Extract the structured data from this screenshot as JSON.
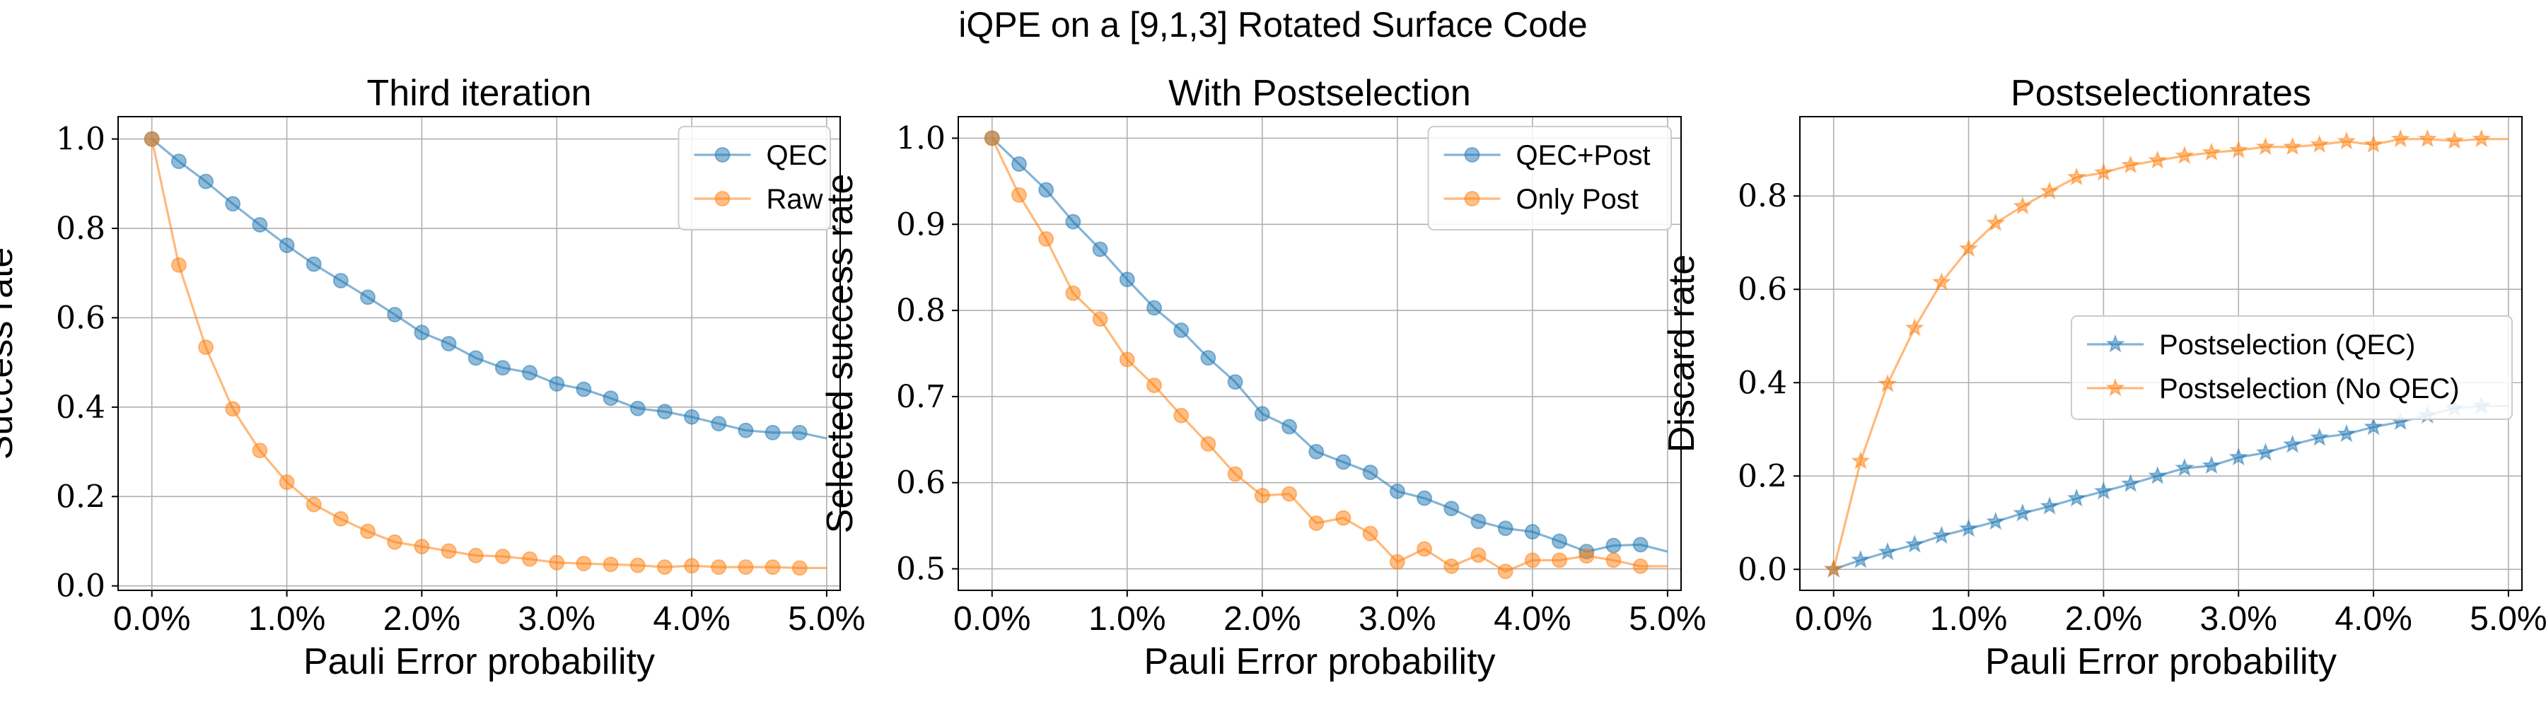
{
  "suptitle": "iQPE on a [9,1,3] Rotated Surface Code",
  "colors": {
    "blue": "#1f77b4",
    "orange": "#ff7f0e",
    "grid": "#b0b0b0",
    "axis": "#000000"
  },
  "chart_data": [
    {
      "type": "line",
      "title": "Third iteration",
      "xlabel": "Pauli Error probability",
      "ylabel": "Success rate",
      "xlim": [
        -0.25,
        5.1
      ],
      "ylim": [
        -0.01,
        1.05
      ],
      "xticks": [
        0,
        1,
        2,
        3,
        4,
        5
      ],
      "xtick_labels": [
        "0.0%",
        "1.0%",
        "2.0%",
        "3.0%",
        "4.0%",
        "5.0%"
      ],
      "yticks": [
        0.0,
        0.2,
        0.4,
        0.6,
        0.8,
        1.0
      ],
      "ytick_labels": [
        "0.0",
        "0.2",
        "0.4",
        "0.6",
        "0.8",
        "1.0"
      ],
      "grid": true,
      "legend_position": "top-right",
      "x": [
        0,
        0.2,
        0.4,
        0.6,
        0.8,
        1.0,
        1.2,
        1.4,
        1.6,
        1.8,
        2.0,
        2.2,
        2.4,
        2.6,
        2.8,
        3.0,
        3.2,
        3.4,
        3.6,
        3.8,
        4.0,
        4.2,
        4.4,
        4.6,
        4.8,
        5.0
      ],
      "series": [
        {
          "name": "QEC",
          "color": "#1f77b4",
          "marker": "circle",
          "marker_x": [
            0,
            0.2,
            0.4,
            0.6,
            0.8,
            1.0,
            1.2,
            1.4,
            1.6,
            1.8,
            2.0,
            2.2,
            2.4,
            2.6,
            2.8,
            3.0,
            3.2,
            3.4,
            3.6,
            3.8,
            4.0,
            4.2,
            4.4,
            4.6,
            4.8
          ],
          "values": [
            1.0,
            0.95,
            0.905,
            0.855,
            0.808,
            0.762,
            0.72,
            0.683,
            0.646,
            0.607,
            0.567,
            0.542,
            0.51,
            0.488,
            0.477,
            0.452,
            0.44,
            0.42,
            0.397,
            0.39,
            0.378,
            0.363,
            0.348,
            0.343,
            0.343,
            0.33
          ]
        },
        {
          "name": "Raw",
          "color": "#ff7f0e",
          "marker": "circle",
          "marker_x": [
            0,
            0.2,
            0.4,
            0.6,
            0.8,
            1.0,
            1.2,
            1.4,
            1.6,
            1.8,
            2.0,
            2.2,
            2.4,
            2.6,
            2.8,
            3.0,
            3.2,
            3.4,
            3.6,
            3.8,
            4.0,
            4.2,
            4.4,
            4.6,
            4.8
          ],
          "values": [
            1.0,
            0.718,
            0.534,
            0.396,
            0.303,
            0.232,
            0.182,
            0.15,
            0.122,
            0.098,
            0.088,
            0.078,
            0.068,
            0.066,
            0.06,
            0.052,
            0.05,
            0.048,
            0.046,
            0.042,
            0.045,
            0.042,
            0.042,
            0.042,
            0.04,
            0.04
          ]
        }
      ]
    },
    {
      "type": "line",
      "title": "With Postselection",
      "xlabel": "Pauli Error probability",
      "ylabel": "Selected success rate",
      "xlim": [
        -0.25,
        5.1
      ],
      "ylim": [
        0.475,
        1.025
      ],
      "xticks": [
        0,
        1,
        2,
        3,
        4,
        5
      ],
      "xtick_labels": [
        "0.0%",
        "1.0%",
        "2.0%",
        "3.0%",
        "4.0%",
        "5.0%"
      ],
      "yticks": [
        0.5,
        0.6,
        0.7,
        0.8,
        0.9,
        1.0
      ],
      "ytick_labels": [
        "0.5",
        "0.6",
        "0.7",
        "0.8",
        "0.9",
        "1.0"
      ],
      "grid": true,
      "legend_position": "top-right",
      "x": [
        0,
        0.2,
        0.4,
        0.6,
        0.8,
        1.0,
        1.2,
        1.4,
        1.6,
        1.8,
        2.0,
        2.2,
        2.4,
        2.6,
        2.8,
        3.0,
        3.2,
        3.4,
        3.6,
        3.8,
        4.0,
        4.2,
        4.4,
        4.6,
        4.8,
        5.0
      ],
      "series": [
        {
          "name": "QEC+Post",
          "color": "#1f77b4",
          "marker": "circle",
          "marker_x": [
            0,
            0.2,
            0.4,
            0.6,
            0.8,
            1.0,
            1.2,
            1.4,
            1.6,
            1.8,
            2.0,
            2.2,
            2.4,
            2.6,
            2.8,
            3.0,
            3.2,
            3.4,
            3.6,
            3.8,
            4.0,
            4.2,
            4.4,
            4.6,
            4.8
          ],
          "values": [
            1.0,
            0.97,
            0.94,
            0.903,
            0.871,
            0.836,
            0.803,
            0.777,
            0.745,
            0.717,
            0.68,
            0.665,
            0.636,
            0.624,
            0.612,
            0.59,
            0.582,
            0.57,
            0.555,
            0.547,
            0.543,
            0.532,
            0.52,
            0.527,
            0.528,
            0.52
          ]
        },
        {
          "name": "Only Post",
          "color": "#ff7f0e",
          "marker": "circle",
          "marker_x": [
            0,
            0.2,
            0.4,
            0.6,
            0.8,
            1.0,
            1.2,
            1.4,
            1.6,
            1.8,
            2.0,
            2.2,
            2.4,
            2.6,
            2.8,
            3.0,
            3.2,
            3.4,
            3.6,
            3.8,
            4.0,
            4.2,
            4.4,
            4.6,
            4.8
          ],
          "values": [
            1.0,
            0.934,
            0.883,
            0.82,
            0.79,
            0.743,
            0.713,
            0.678,
            0.645,
            0.61,
            0.585,
            0.587,
            0.553,
            0.559,
            0.541,
            0.508,
            0.523,
            0.503,
            0.516,
            0.497,
            0.51,
            0.51,
            0.515,
            0.51,
            0.503,
            0.503
          ]
        }
      ]
    },
    {
      "type": "line",
      "title": "Postselectionrates",
      "xlabel": "Pauli Error probability",
      "ylabel": "Discard rate",
      "xlim": [
        -0.25,
        5.1
      ],
      "ylim": [
        -0.045,
        0.97
      ],
      "xticks": [
        0,
        1,
        2,
        3,
        4,
        5
      ],
      "xtick_labels": [
        "0.0%",
        "1.0%",
        "2.0%",
        "3.0%",
        "4.0%",
        "5.0%"
      ],
      "yticks": [
        0.0,
        0.2,
        0.4,
        0.6,
        0.8
      ],
      "ytick_labels": [
        "0.0",
        "0.2",
        "0.4",
        "0.6",
        "0.8"
      ],
      "grid": true,
      "legend_position": "center-right",
      "x": [
        0,
        0.2,
        0.4,
        0.6,
        0.8,
        1.0,
        1.2,
        1.4,
        1.6,
        1.8,
        2.0,
        2.2,
        2.4,
        2.6,
        2.8,
        3.0,
        3.2,
        3.4,
        3.6,
        3.8,
        4.0,
        4.2,
        4.4,
        4.6,
        4.8,
        5.0
      ],
      "series": [
        {
          "name": "Postselection (QEC)",
          "color": "#1f77b4",
          "marker": "star",
          "marker_x": [
            0,
            0.2,
            0.4,
            0.6,
            0.8,
            1.0,
            1.2,
            1.4,
            1.6,
            1.8,
            2.0,
            2.2,
            2.4,
            2.6,
            2.8,
            3.0,
            3.2,
            3.4,
            3.6,
            3.8,
            4.0,
            4.2,
            4.4,
            4.6,
            4.8
          ],
          "values": [
            0.0,
            0.02,
            0.037,
            0.053,
            0.072,
            0.087,
            0.102,
            0.12,
            0.135,
            0.152,
            0.167,
            0.183,
            0.2,
            0.217,
            0.222,
            0.24,
            0.25,
            0.267,
            0.282,
            0.29,
            0.305,
            0.316,
            0.33,
            0.345,
            0.35,
            0.35
          ]
        },
        {
          "name": "Postselection (No QEC)",
          "color": "#ff7f0e",
          "marker": "star",
          "marker_x": [
            0,
            0.2,
            0.4,
            0.6,
            0.8,
            1.0,
            1.2,
            1.4,
            1.6,
            1.8,
            2.0,
            2.2,
            2.4,
            2.6,
            2.8,
            3.0,
            3.2,
            3.4,
            3.6,
            3.8,
            4.0,
            4.2,
            4.4,
            4.6,
            4.8
          ],
          "values": [
            0.0,
            0.232,
            0.397,
            0.517,
            0.615,
            0.687,
            0.742,
            0.778,
            0.81,
            0.84,
            0.85,
            0.866,
            0.876,
            0.886,
            0.893,
            0.898,
            0.905,
            0.905,
            0.91,
            0.917,
            0.91,
            0.922,
            0.922,
            0.918,
            0.922,
            0.922
          ]
        }
      ]
    }
  ]
}
